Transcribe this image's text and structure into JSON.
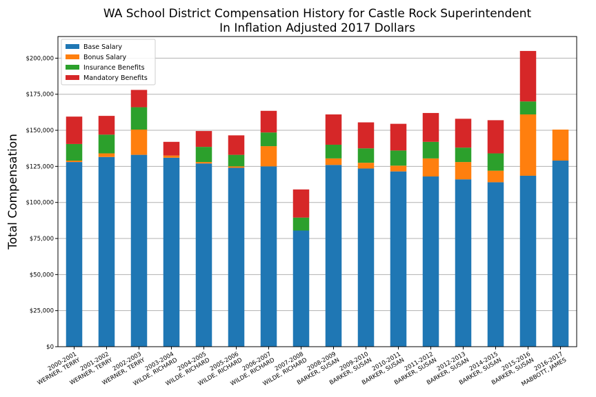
{
  "chart_data": {
    "type": "bar",
    "stacked": true,
    "title": "WA School District Compensation History for Castle Rock Superintendent",
    "subtitle": "In Inflation Adjusted 2017 Dollars",
    "xlabel": "",
    "ylabel": "Total Compensation",
    "ylim": [
      0,
      215000
    ],
    "grid": "horizontal",
    "legend_position": "top-left",
    "yticks": [
      "$0",
      "$25,000",
      "$50,000",
      "$75,000",
      "$100,000",
      "$125,000",
      "$150,000",
      "$175,000",
      "$200,000"
    ],
    "ytick_values": [
      0,
      25000,
      50000,
      75000,
      100000,
      125000,
      150000,
      175000,
      200000
    ],
    "categories": [
      [
        "2000-2001",
        "WERNER, TERRY"
      ],
      [
        "2001-2002",
        "WERNER, TERRY"
      ],
      [
        "2002-2003",
        "WERNER, TERRY"
      ],
      [
        "2003-2004",
        "WILDE, RICHARD"
      ],
      [
        "2004-2005",
        "WILDE, RICHARD"
      ],
      [
        "2005-2006",
        "WILDE, RICHARD"
      ],
      [
        "2006-2007",
        "WILDE, RICHARD"
      ],
      [
        "2007-2008",
        "WILDE, RICHARD"
      ],
      [
        "2008-2009",
        "BARKER, SUSAN"
      ],
      [
        "2009-2010",
        "BARKER, SUSAN"
      ],
      [
        "2010-2011",
        "BARKER, SUSAN"
      ],
      [
        "2011-2012",
        "BARKER, SUSAN"
      ],
      [
        "2012-2013",
        "BARKER, SUSAN"
      ],
      [
        "2014-2015",
        "BARKER, SUSAN"
      ],
      [
        "2015-2016",
        "BARKER, SUSAN"
      ],
      [
        "2016-2017",
        "MABBOTT, JAMES"
      ]
    ],
    "series": [
      {
        "name": "Base Salary",
        "color": "#1f77b4",
        "values": [
          128000,
          131500,
          133000,
          131000,
          127000,
          124000,
          125000,
          80500,
          126000,
          123500,
          121500,
          118000,
          116000,
          114000,
          118500,
          129000
        ]
      },
      {
        "name": "Bonus Salary",
        "color": "#ff7f0e",
        "values": [
          1000,
          2500,
          17500,
          1500,
          1000,
          1000,
          14000,
          0,
          4500,
          4000,
          4000,
          12500,
          12000,
          8000,
          42500,
          21500
        ]
      },
      {
        "name": "Insurance Benefits",
        "color": "#2ca02c",
        "values": [
          11500,
          13000,
          15500,
          0,
          10500,
          8000,
          9500,
          9000,
          9500,
          10000,
          10500,
          11500,
          10000,
          12000,
          9000,
          0
        ]
      },
      {
        "name": "Mandatory Benefits",
        "color": "#d62728",
        "values": [
          19000,
          13000,
          12000,
          9500,
          11000,
          13500,
          15000,
          19500,
          21000,
          18000,
          18500,
          20000,
          20000,
          23000,
          35000,
          0
        ]
      }
    ]
  }
}
